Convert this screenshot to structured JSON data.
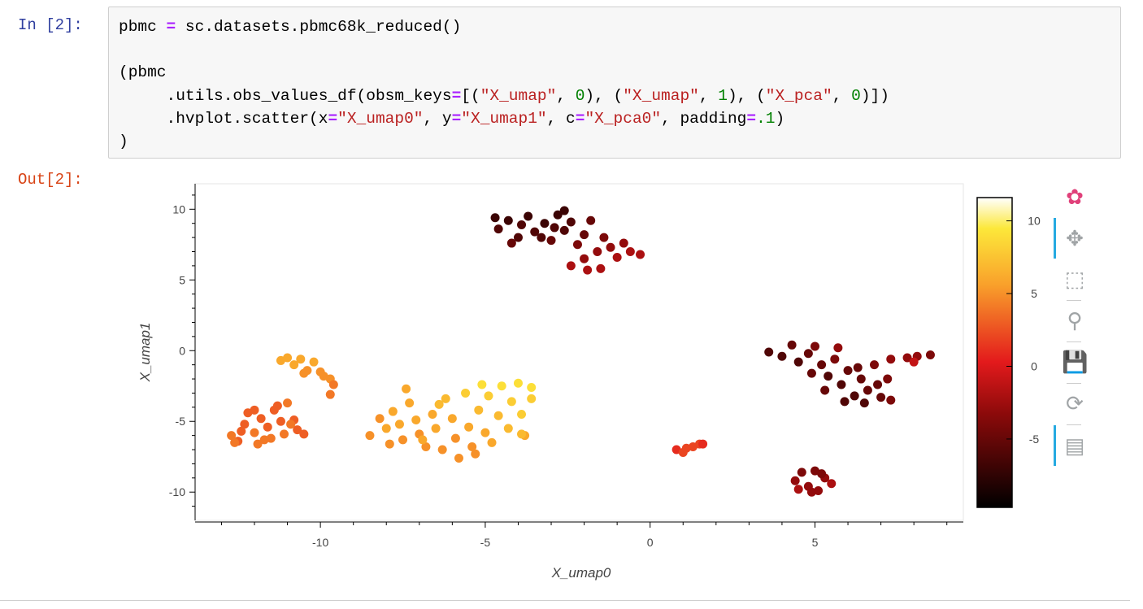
{
  "cell": {
    "in_prompt": "In [2]:",
    "out_prompt": "Out[2]:",
    "code_lines": [
      [
        {
          "t": "pbmc ",
          "k": "p"
        },
        {
          "t": "=",
          "k": "o"
        },
        {
          "t": " sc.datasets.pbmc68k_reduced()",
          "k": "p"
        }
      ],
      [],
      [
        {
          "t": "(pbmc",
          "k": "p"
        }
      ],
      [
        {
          "t": "     .utils.obs_values_df(obsm_keys",
          "k": "p"
        },
        {
          "t": "=",
          "k": "o"
        },
        {
          "t": "[(",
          "k": "p"
        },
        {
          "t": "\"X_umap\"",
          "k": "s"
        },
        {
          "t": ", ",
          "k": "p"
        },
        {
          "t": "0",
          "k": "n"
        },
        {
          "t": "), (",
          "k": "p"
        },
        {
          "t": "\"X_umap\"",
          "k": "s"
        },
        {
          "t": ", ",
          "k": "p"
        },
        {
          "t": "1",
          "k": "n"
        },
        {
          "t": "), (",
          "k": "p"
        },
        {
          "t": "\"X_pca\"",
          "k": "s"
        },
        {
          "t": ", ",
          "k": "p"
        },
        {
          "t": "0",
          "k": "n"
        },
        {
          "t": ")])",
          "k": "p"
        }
      ],
      [
        {
          "t": "     .hvplot.scatter(x",
          "k": "p"
        },
        {
          "t": "=",
          "k": "o"
        },
        {
          "t": "\"X_umap0\"",
          "k": "s"
        },
        {
          "t": ", y",
          "k": "p"
        },
        {
          "t": "=",
          "k": "o"
        },
        {
          "t": "\"X_umap1\"",
          "k": "s"
        },
        {
          "t": ", c",
          "k": "p"
        },
        {
          "t": "=",
          "k": "o"
        },
        {
          "t": "\"X_pca0\"",
          "k": "s"
        },
        {
          "t": ", padding",
          "k": "p"
        },
        {
          "t": "=",
          "k": "o"
        },
        {
          "t": ".1",
          "k": "n"
        },
        {
          "t": ")",
          "k": "p"
        }
      ],
      [
        {
          "t": ")",
          "k": "p"
        }
      ]
    ]
  },
  "toolbar": {
    "tools": [
      {
        "name": "bokeh-logo-icon",
        "glyph": "✿",
        "active": false
      },
      {
        "name": "pan-icon",
        "glyph": "✥",
        "active": true
      },
      {
        "name": "box-zoom-icon",
        "glyph": "⬚",
        "active": false
      },
      {
        "name": "wheel-zoom-icon",
        "glyph": "⚲",
        "active": false
      },
      {
        "name": "save-icon",
        "glyph": "💾",
        "active": false
      },
      {
        "name": "reset-icon",
        "glyph": "⟳",
        "active": false
      },
      {
        "name": "hover-icon",
        "glyph": "▤",
        "active": true
      }
    ],
    "accent_color": "#26aae1"
  },
  "chart_data": {
    "type": "scatter",
    "title": "",
    "xlabel": "X_umap0",
    "ylabel": "X_umap1",
    "xlim": [
      -13.8,
      9.5
    ],
    "ylim": [
      -12.0,
      11.8
    ],
    "xticks": [
      -10,
      -5,
      0,
      5
    ],
    "yticks": [
      -10,
      -5,
      0,
      5,
      10
    ],
    "grid": false,
    "color_field": "X_pca0",
    "colorbar": {
      "range": [
        -9.7,
        11.6
      ],
      "ticks": [
        -5,
        0,
        5,
        10
      ],
      "colormap": [
        "#000000",
        "#8b0a0a",
        "#e31a1c",
        "#f9a12b",
        "#fce83a",
        "#ffffff"
      ],
      "placement": "right"
    },
    "points": [
      [
        -4.6,
        8.6,
        -6
      ],
      [
        -4.3,
        9.2,
        -7
      ],
      [
        -4.0,
        8.0,
        -6
      ],
      [
        -3.7,
        9.5,
        -7
      ],
      [
        -3.5,
        8.4,
        -6
      ],
      [
        -3.2,
        9.0,
        -7
      ],
      [
        -3.0,
        7.8,
        -5
      ],
      [
        -2.8,
        9.6,
        -7
      ],
      [
        -2.6,
        8.5,
        -6
      ],
      [
        -2.4,
        9.1,
        -6
      ],
      [
        -2.2,
        7.5,
        -4
      ],
      [
        -2.0,
        8.2,
        -5
      ],
      [
        -1.8,
        9.2,
        -5
      ],
      [
        -1.6,
        7.0,
        -3
      ],
      [
        -1.4,
        8.0,
        -4
      ],
      [
        -1.2,
        7.3,
        -3
      ],
      [
        -1.0,
        6.6,
        -2
      ],
      [
        -0.8,
        7.6,
        -3
      ],
      [
        -0.6,
        7.0,
        -2
      ],
      [
        -0.3,
        6.8,
        -2
      ],
      [
        -2.4,
        6.0,
        -2
      ],
      [
        -2.0,
        6.5,
        -3
      ],
      [
        -4.7,
        9.4,
        -7
      ],
      [
        -3.9,
        8.9,
        -6
      ],
      [
        -3.3,
        8.0,
        -6
      ],
      [
        -2.9,
        8.7,
        -6
      ],
      [
        -1.5,
        5.8,
        -2
      ],
      [
        -4.2,
        7.6,
        -5
      ],
      [
        -2.6,
        9.9,
        -7
      ],
      [
        -1.9,
        5.7,
        -2
      ],
      [
        3.6,
        -0.1,
        -6
      ],
      [
        4.0,
        -0.4,
        -6
      ],
      [
        4.3,
        0.4,
        -5
      ],
      [
        4.5,
        -0.8,
        -6
      ],
      [
        4.8,
        -0.2,
        -5
      ],
      [
        5.0,
        0.3,
        -4
      ],
      [
        5.2,
        -1.0,
        -5
      ],
      [
        5.4,
        -1.8,
        -6
      ],
      [
        5.6,
        -0.6,
        -4
      ],
      [
        5.8,
        -2.4,
        -6
      ],
      [
        6.0,
        -1.4,
        -5
      ],
      [
        6.2,
        -3.2,
        -6
      ],
      [
        6.4,
        -2.0,
        -5
      ],
      [
        6.6,
        -2.8,
        -5
      ],
      [
        6.8,
        -1.0,
        -4
      ],
      [
        7.0,
        -3.3,
        -5
      ],
      [
        7.2,
        -2.0,
        -4
      ],
      [
        7.3,
        -0.6,
        -3
      ],
      [
        7.8,
        -0.5,
        -3
      ],
      [
        8.1,
        -0.4,
        -3
      ],
      [
        8.5,
        -0.3,
        -4
      ],
      [
        8.0,
        -0.8,
        -1
      ],
      [
        5.9,
        -3.6,
        -6
      ],
      [
        6.5,
        -3.7,
        -6
      ],
      [
        5.3,
        -2.8,
        -5
      ],
      [
        4.9,
        -1.6,
        -5
      ],
      [
        6.9,
        -2.4,
        -5
      ],
      [
        7.3,
        -3.5,
        -4
      ],
      [
        5.7,
        0.2,
        -3
      ],
      [
        6.3,
        -1.2,
        -5
      ],
      [
        4.4,
        -9.2,
        -3
      ],
      [
        4.6,
        -8.6,
        -4
      ],
      [
        4.8,
        -9.6,
        -3
      ],
      [
        5.0,
        -8.5,
        -4
      ],
      [
        5.1,
        -9.9,
        -3
      ],
      [
        5.3,
        -9.0,
        -3
      ],
      [
        5.5,
        -9.4,
        -2
      ],
      [
        4.9,
        -10.0,
        -3
      ],
      [
        4.5,
        -9.8,
        -2
      ],
      [
        5.2,
        -8.7,
        -4
      ],
      [
        0.8,
        -7.0,
        1
      ],
      [
        1.0,
        -7.2,
        2
      ],
      [
        1.1,
        -6.9,
        2
      ],
      [
        1.3,
        -6.8,
        2
      ],
      [
        1.5,
        -6.6,
        2
      ],
      [
        1.6,
        -6.6,
        1
      ],
      [
        -12.7,
        -6.0,
        4
      ],
      [
        -12.5,
        -6.4,
        3
      ],
      [
        -12.3,
        -5.2,
        3
      ],
      [
        -12.2,
        -4.4,
        3
      ],
      [
        -12.0,
        -5.8,
        4
      ],
      [
        -11.9,
        -6.6,
        4
      ],
      [
        -11.8,
        -4.8,
        3
      ],
      [
        -11.6,
        -5.4,
        3
      ],
      [
        -11.5,
        -6.2,
        4
      ],
      [
        -11.4,
        -4.2,
        3
      ],
      [
        -11.2,
        -5.0,
        3
      ],
      [
        -11.1,
        -5.9,
        4
      ],
      [
        -11.0,
        -3.7,
        4
      ],
      [
        -10.8,
        -4.9,
        3
      ],
      [
        -10.7,
        -5.6,
        3
      ],
      [
        -10.5,
        -5.9,
        3
      ],
      [
        -12.0,
        -4.2,
        3
      ],
      [
        -12.6,
        -6.5,
        4
      ],
      [
        -11.7,
        -6.3,
        4
      ],
      [
        -11.3,
        -3.9,
        3
      ],
      [
        -10.9,
        -5.2,
        4
      ],
      [
        -12.4,
        -5.7,
        3
      ],
      [
        -11.2,
        -0.7,
        6
      ],
      [
        -11.0,
        -0.5,
        6
      ],
      [
        -10.8,
        -1.0,
        6
      ],
      [
        -10.6,
        -0.6,
        6
      ],
      [
        -10.4,
        -1.4,
        5
      ],
      [
        -10.2,
        -0.8,
        6
      ],
      [
        -10.0,
        -1.5,
        5
      ],
      [
        -9.9,
        -1.8,
        5
      ],
      [
        -9.7,
        -2.0,
        5
      ],
      [
        -9.6,
        -2.4,
        4
      ],
      [
        -9.7,
        -3.1,
        4
      ],
      [
        -10.5,
        -1.6,
        5
      ],
      [
        -8.5,
        -6.0,
        5
      ],
      [
        -8.2,
        -4.8,
        5
      ],
      [
        -8.0,
        -5.5,
        6
      ],
      [
        -7.8,
        -4.3,
        6
      ],
      [
        -7.6,
        -5.2,
        6
      ],
      [
        -7.5,
        -6.3,
        5
      ],
      [
        -7.3,
        -3.7,
        6
      ],
      [
        -7.1,
        -4.9,
        6
      ],
      [
        -7.0,
        -5.9,
        5
      ],
      [
        -6.8,
        -6.8,
        5
      ],
      [
        -6.6,
        -4.5,
        6
      ],
      [
        -6.5,
        -5.5,
        6
      ],
      [
        -6.3,
        -7.0,
        5
      ],
      [
        -6.2,
        -3.4,
        7
      ],
      [
        -6.0,
        -4.8,
        6
      ],
      [
        -5.9,
        -6.2,
        5
      ],
      [
        -5.8,
        -7.6,
        5
      ],
      [
        -5.6,
        -3.0,
        8
      ],
      [
        -5.5,
        -5.4,
        6
      ],
      [
        -5.4,
        -6.8,
        5
      ],
      [
        -5.2,
        -4.2,
        7
      ],
      [
        -5.0,
        -5.8,
        6
      ],
      [
        -4.9,
        -3.2,
        8
      ],
      [
        -4.8,
        -6.5,
        6
      ],
      [
        -4.6,
        -4.6,
        7
      ],
      [
        -4.5,
        -2.5,
        9
      ],
      [
        -4.3,
        -5.5,
        7
      ],
      [
        -4.2,
        -3.6,
        8
      ],
      [
        -4.0,
        -2.3,
        9
      ],
      [
        -3.9,
        -4.5,
        8
      ],
      [
        -3.8,
        -6.0,
        6
      ],
      [
        -3.6,
        -2.6,
        9
      ],
      [
        -3.6,
        -3.4,
        8
      ],
      [
        -3.9,
        -5.9,
        7
      ],
      [
        -7.9,
        -6.6,
        5
      ],
      [
        -6.9,
        -6.3,
        6
      ],
      [
        -5.3,
        -7.3,
        5
      ],
      [
        -6.4,
        -3.8,
        7
      ],
      [
        -5.1,
        -2.4,
        9
      ],
      [
        -7.4,
        -2.7,
        6
      ]
    ]
  }
}
